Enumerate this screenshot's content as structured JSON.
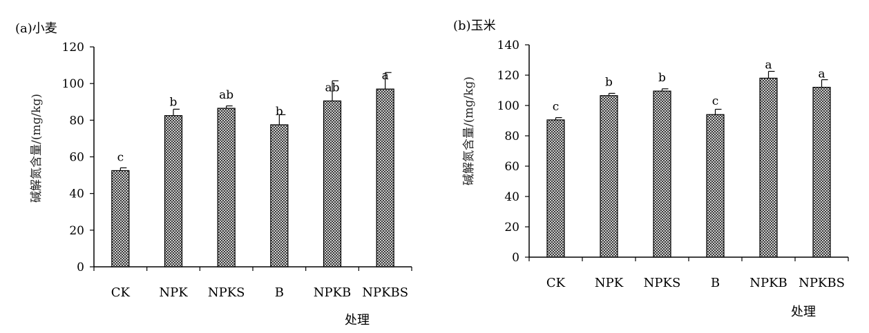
{
  "chart_data": [
    {
      "type": "bar",
      "title": "(a)小麦",
      "xlabel": "处理",
      "ylabel": "碱解氮含量/(mg/kg)",
      "categories": [
        "CK",
        "NPK",
        "NPKS",
        "B",
        "NPKB",
        "NPKBS"
      ],
      "values": [
        52.5,
        82.5,
        86.5,
        77.5,
        90.5,
        97
      ],
      "errors": [
        1.5,
        3.5,
        1.3,
        5.5,
        11,
        9
      ],
      "significance": [
        "c",
        "b",
        "ab",
        "b",
        "ab",
        "a"
      ],
      "ylim": [
        0,
        120
      ],
      "yticks": [
        0,
        20,
        40,
        60,
        80,
        100,
        120
      ],
      "grid": false,
      "legend": "none"
    },
    {
      "type": "bar",
      "title": "(b)玉米",
      "xlabel": "处理",
      "ylabel": "碱解氮含量/(mg/kg)",
      "categories": [
        "CK",
        "NPK",
        "NPKS",
        "B",
        "NPKB",
        "NPKBS"
      ],
      "values": [
        90.5,
        106.5,
        109.5,
        94,
        118,
        112
      ],
      "errors": [
        1.5,
        1.5,
        1.5,
        3.5,
        4.5,
        5
      ],
      "significance": [
        "c",
        "b",
        "b",
        "c",
        "a",
        "a"
      ],
      "ylim": [
        0,
        140
      ],
      "yticks": [
        0,
        20,
        40,
        60,
        80,
        100,
        120,
        140
      ],
      "grid": false,
      "legend": "none"
    }
  ]
}
